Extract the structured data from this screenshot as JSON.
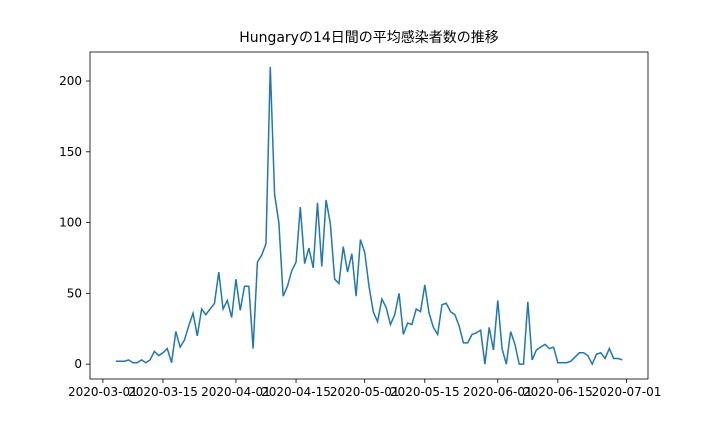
{
  "chart_data": {
    "type": "line",
    "title": "Hungaryの14日間の平均感染者数の推移",
    "color": "#1f77b4",
    "x": [
      "2020-03-04",
      "2020-03-05",
      "2020-03-06",
      "2020-03-07",
      "2020-03-08",
      "2020-03-09",
      "2020-03-10",
      "2020-03-11",
      "2020-03-12",
      "2020-03-13",
      "2020-03-14",
      "2020-03-15",
      "2020-03-16",
      "2020-03-17",
      "2020-03-18",
      "2020-03-19",
      "2020-03-20",
      "2020-03-21",
      "2020-03-22",
      "2020-03-23",
      "2020-03-24",
      "2020-03-25",
      "2020-03-26",
      "2020-03-27",
      "2020-03-28",
      "2020-03-29",
      "2020-03-30",
      "2020-03-31",
      "2020-04-01",
      "2020-04-02",
      "2020-04-03",
      "2020-04-04",
      "2020-04-05",
      "2020-04-06",
      "2020-04-07",
      "2020-04-08",
      "2020-04-09",
      "2020-04-10",
      "2020-04-11",
      "2020-04-12",
      "2020-04-13",
      "2020-04-14",
      "2020-04-15",
      "2020-04-16",
      "2020-04-17",
      "2020-04-18",
      "2020-04-19",
      "2020-04-20",
      "2020-04-21",
      "2020-04-22",
      "2020-04-23",
      "2020-04-24",
      "2020-04-25",
      "2020-04-26",
      "2020-04-27",
      "2020-04-28",
      "2020-04-29",
      "2020-04-30",
      "2020-05-01",
      "2020-05-02",
      "2020-05-03",
      "2020-05-04",
      "2020-05-05",
      "2020-05-06",
      "2020-05-07",
      "2020-05-08",
      "2020-05-09",
      "2020-05-10",
      "2020-05-11",
      "2020-05-12",
      "2020-05-13",
      "2020-05-14",
      "2020-05-15",
      "2020-05-16",
      "2020-05-17",
      "2020-05-18",
      "2020-05-19",
      "2020-05-20",
      "2020-05-21",
      "2020-05-22",
      "2020-05-23",
      "2020-05-24",
      "2020-05-25",
      "2020-05-26",
      "2020-05-27",
      "2020-05-28",
      "2020-05-29",
      "2020-05-30",
      "2020-05-31",
      "2020-06-01",
      "2020-06-02",
      "2020-06-03",
      "2020-06-04",
      "2020-06-05",
      "2020-06-06",
      "2020-06-07",
      "2020-06-08",
      "2020-06-09",
      "2020-06-10",
      "2020-06-11",
      "2020-06-12",
      "2020-06-13",
      "2020-06-14",
      "2020-06-15",
      "2020-06-16",
      "2020-06-17",
      "2020-06-18",
      "2020-06-19",
      "2020-06-20",
      "2020-06-21",
      "2020-06-22",
      "2020-06-23",
      "2020-06-24",
      "2020-06-25",
      "2020-06-26",
      "2020-06-27",
      "2020-06-28",
      "2020-06-29",
      "2020-06-30"
    ],
    "values": [
      2,
      2,
      2,
      3,
      1,
      1,
      3,
      1,
      3,
      9,
      6,
      8,
      11,
      1,
      23,
      12,
      17,
      27,
      36,
      20,
      39,
      35,
      39,
      43,
      65,
      39,
      45,
      33,
      60,
      38,
      55,
      55,
      11,
      72,
      77,
      85,
      210,
      120,
      100,
      48,
      55,
      66,
      72,
      111,
      71,
      82,
      68,
      114,
      69,
      116,
      99,
      60,
      57,
      83,
      65,
      78,
      48,
      88,
      79,
      55,
      37,
      30,
      46,
      40,
      28,
      35,
      50,
      21,
      29,
      28,
      39,
      37,
      56,
      36,
      26,
      21,
      42,
      43,
      37,
      35,
      27,
      15,
      15,
      21,
      22,
      24,
      0,
      26,
      10,
      45,
      11,
      0,
      23,
      14,
      0,
      0,
      44,
      3,
      10,
      12,
      14,
      11,
      12,
      1,
      1,
      1,
      2,
      5,
      8,
      8,
      6,
      0,
      7,
      8,
      4,
      11,
      4,
      4,
      3
    ],
    "xlim": [
      "2020-02-27",
      "2020-07-06"
    ],
    "xticks": [
      "2020-03-01",
      "2020-03-15",
      "2020-04-01",
      "2020-04-15",
      "2020-05-01",
      "2020-05-15",
      "2020-06-01",
      "2020-06-15",
      "2020-07-01"
    ],
    "ylim": [
      -10.5,
      220.5
    ],
    "yticks": [
      0,
      50,
      100,
      150,
      200
    ]
  }
}
